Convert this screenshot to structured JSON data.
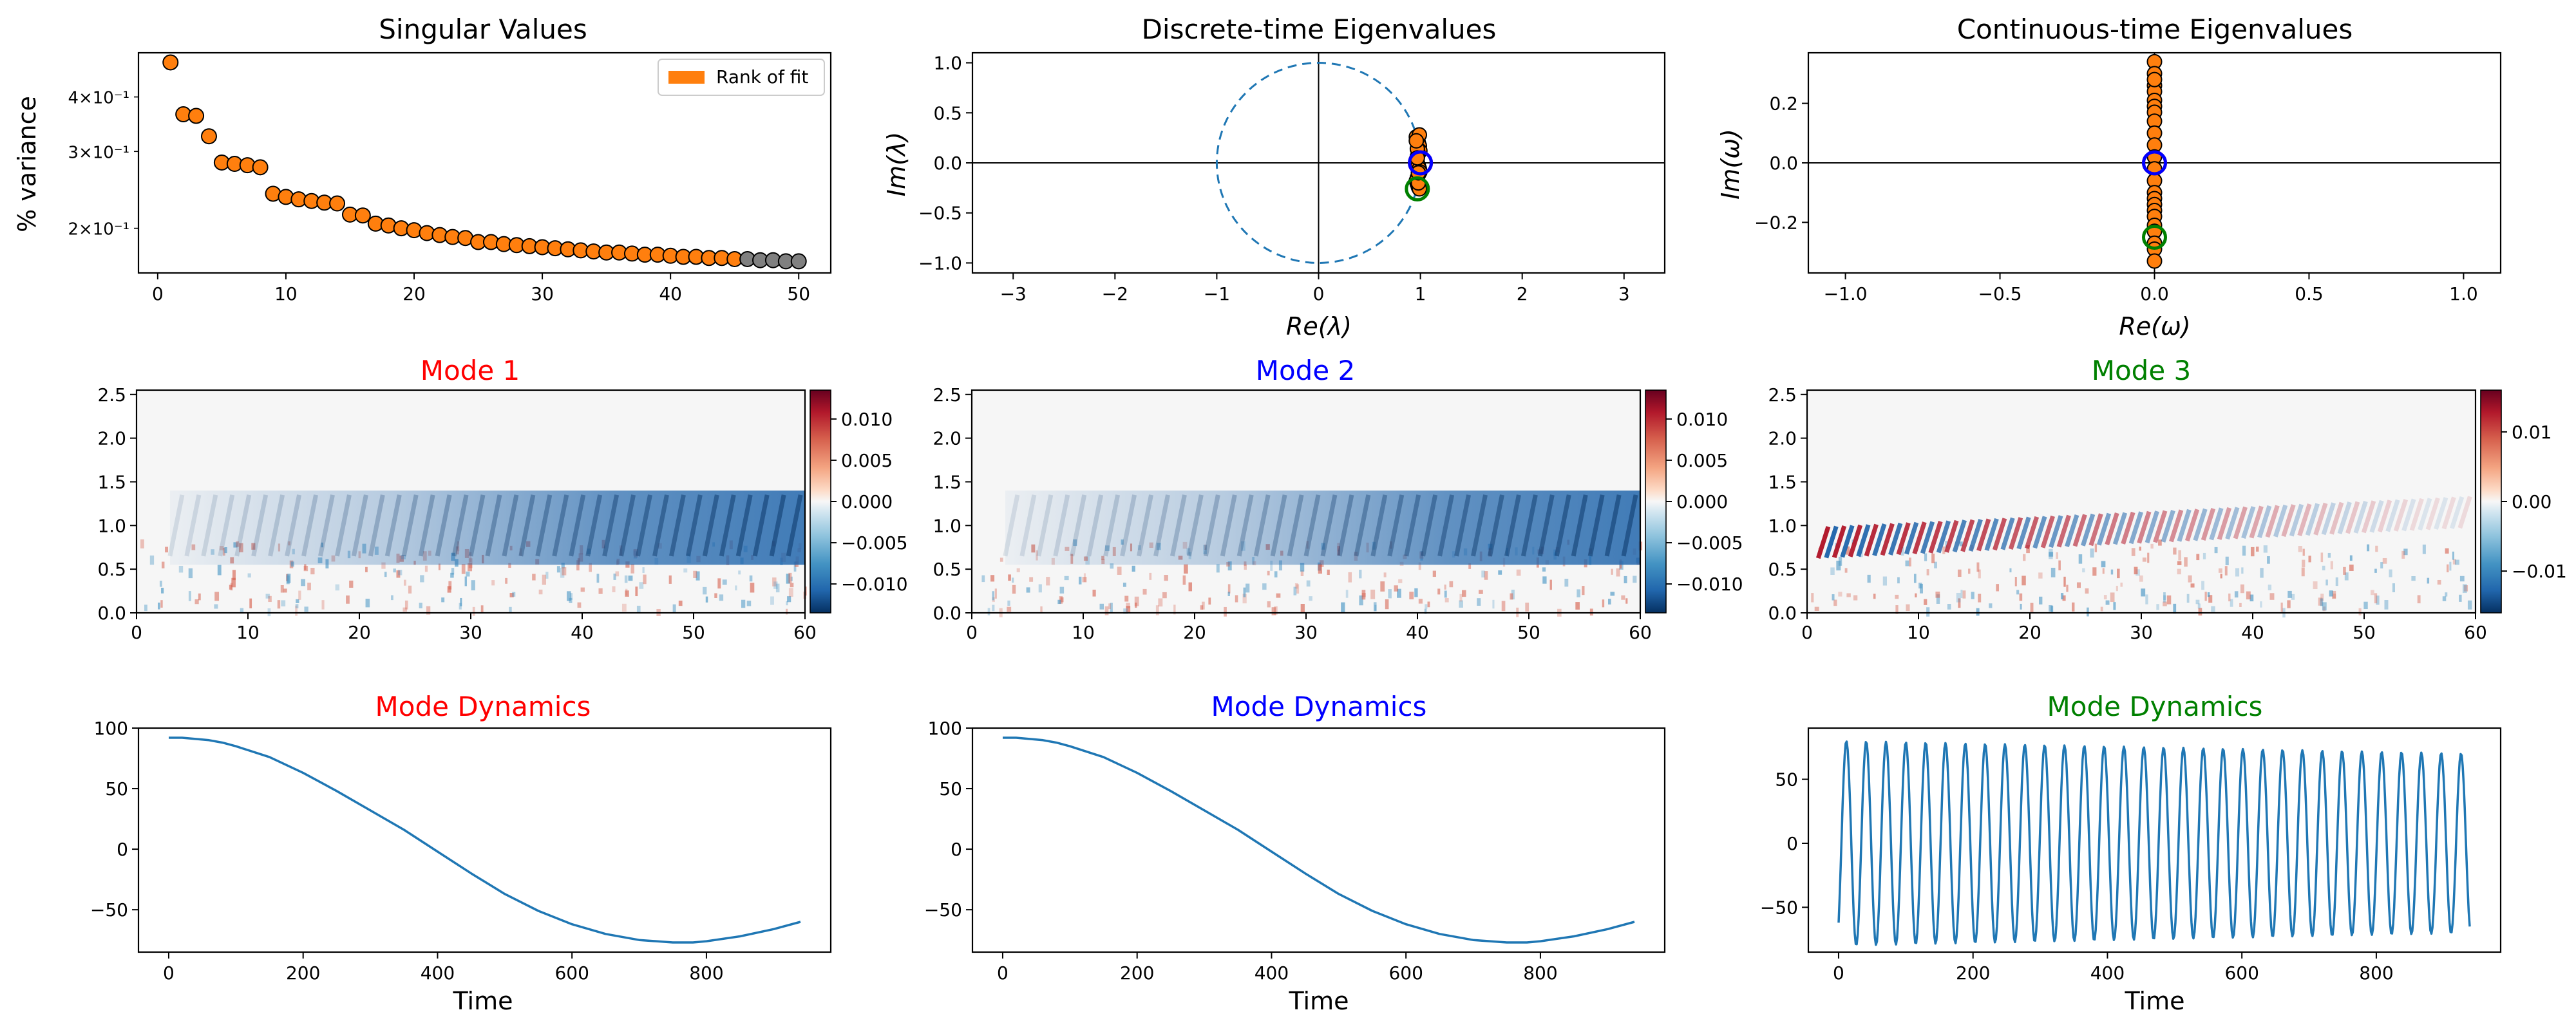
{
  "figure": {
    "colors": {
      "orange": "#ff7f0e",
      "gray": "#808080",
      "blue_line": "#1f77b4",
      "mode1": "#ff0000",
      "mode2": "#0000ff",
      "mode3": "#008000"
    }
  },
  "chart_data": [
    {
      "id": "singular_values",
      "type": "scatter",
      "title": "Singular Values",
      "xlabel": "",
      "ylabel": "% variance",
      "yscale": "log",
      "xlim": [
        -1.5,
        52.5
      ],
      "ylim": [
        0.158,
        0.505
      ],
      "xticks": [
        0,
        10,
        20,
        30,
        40,
        50
      ],
      "yticks": [
        {
          "value": 0.4,
          "label": "4×10⁻¹"
        },
        {
          "value": 0.3,
          "label": "3×10⁻¹"
        },
        {
          "value": 0.2,
          "label": "2×10⁻¹"
        }
      ],
      "legend": {
        "label": "Rank of fit",
        "placement": "top-right"
      },
      "rank_of_fit": 45,
      "x": [
        1,
        2,
        3,
        4,
        5,
        6,
        7,
        8,
        9,
        10,
        11,
        12,
        13,
        14,
        15,
        16,
        17,
        18,
        19,
        20,
        21,
        22,
        23,
        24,
        25,
        26,
        27,
        28,
        29,
        30,
        31,
        32,
        33,
        34,
        35,
        36,
        37,
        38,
        39,
        40,
        41,
        42,
        43,
        44,
        45,
        46,
        47,
        48,
        49,
        50
      ],
      "values": [
        0.48,
        0.365,
        0.362,
        0.325,
        0.283,
        0.281,
        0.279,
        0.276,
        0.24,
        0.236,
        0.233,
        0.231,
        0.229,
        0.228,
        0.215,
        0.214,
        0.205,
        0.203,
        0.2,
        0.198,
        0.195,
        0.193,
        0.191,
        0.19,
        0.186,
        0.186,
        0.184,
        0.183,
        0.182,
        0.181,
        0.18,
        0.179,
        0.178,
        0.177,
        0.176,
        0.176,
        0.175,
        0.174,
        0.174,
        0.173,
        0.172,
        0.172,
        0.171,
        0.171,
        0.17,
        0.17,
        0.169,
        0.169,
        0.168,
        0.168
      ]
    },
    {
      "id": "discrete_eigs",
      "type": "scatter",
      "title": "Discrete-time Eigenvalues",
      "xlabel": "Re(λ)",
      "ylabel": "Im(λ)",
      "xlim": [
        -3.4,
        3.4
      ],
      "ylim": [
        -1.1,
        1.1
      ],
      "xticks": [
        -3,
        -2,
        -1,
        0,
        1,
        2,
        3
      ],
      "yticks": [
        1.0,
        0.5,
        0.0,
        -0.5,
        -1.0
      ],
      "unit_circle": true,
      "x": [
        0.96,
        0.97,
        0.98,
        0.99,
        0.995,
        0.98,
        0.97,
        0.96,
        0.97,
        0.98,
        0.99,
        0.995,
        0.98,
        0.97,
        0.96,
        0.97,
        0.98,
        0.99,
        0.97,
        0.98,
        0.99,
        0.97,
        0.96,
        0.98
      ],
      "y": [
        0.26,
        0.23,
        0.2,
        0.17,
        0.12,
        0.09,
        0.06,
        0.03,
        0.0,
        -0.03,
        -0.06,
        -0.09,
        -0.12,
        -0.15,
        -0.18,
        -0.21,
        -0.24,
        -0.26,
        0.14,
        -0.2,
        0.28,
        0.05,
        0.22,
        -0.1
      ],
      "highlight": [
        {
          "x": 1.0,
          "y": 0.0,
          "mode": 1
        },
        {
          "x": 1.0,
          "y": 0.0,
          "mode": 2
        },
        {
          "x": 0.97,
          "y": -0.26,
          "mode": 3
        }
      ]
    },
    {
      "id": "continuous_eigs",
      "type": "scatter",
      "title": "Continuous-time Eigenvalues",
      "xlabel": "Re(ω)",
      "ylabel": "Im(ω)",
      "xlim": [
        -1.12,
        1.12
      ],
      "ylim": [
        -0.37,
        0.37
      ],
      "xticks": [
        -1.0,
        -0.5,
        0.0,
        0.5,
        1.0
      ],
      "yticks": [
        0.2,
        0.0,
        -0.2
      ],
      "x": [
        0,
        0,
        0,
        0,
        0,
        0,
        0,
        0,
        0,
        0,
        0,
        0,
        0,
        0,
        0,
        0,
        0,
        0,
        0,
        0,
        0,
        0,
        0,
        0
      ],
      "y": [
        0.34,
        0.3,
        0.26,
        0.24,
        0.21,
        0.19,
        0.17,
        0.14,
        0.1,
        0.06,
        0.02,
        -0.02,
        -0.06,
        -0.1,
        -0.12,
        -0.14,
        -0.16,
        -0.18,
        -0.21,
        -0.23,
        -0.27,
        -0.29,
        -0.33,
        0.28
      ],
      "highlight": [
        {
          "x": 0.0,
          "y": 0.0,
          "mode": 1
        },
        {
          "x": 0.0,
          "y": 0.0,
          "mode": 2
        },
        {
          "x": 0.0,
          "y": -0.25,
          "mode": 3
        }
      ]
    },
    {
      "id": "mode1_map",
      "type": "heatmap",
      "title": "Mode 1",
      "xlim": [
        0,
        60
      ],
      "ylim": [
        0,
        2.55
      ],
      "xticks": [
        0,
        10,
        20,
        30,
        40,
        50,
        60
      ],
      "yticks": [
        0.0,
        0.5,
        1.0,
        1.5,
        2.0,
        2.5
      ],
      "colorbar": {
        "ticks": [
          0.01,
          0.005,
          0.0,
          -0.005,
          -0.01
        ],
        "labels": [
          "0.010",
          "0.005",
          "0.000",
          "−0.005",
          "−0.010"
        ],
        "range": [
          -0.0135,
          0.0135
        ],
        "colormap": "RdBu_r"
      },
      "pattern": "blue band near y≈1 growing with x, weak red noise near y≈0"
    },
    {
      "id": "mode2_map",
      "type": "heatmap",
      "title": "Mode 2",
      "xlim": [
        0,
        60
      ],
      "ylim": [
        0,
        2.55
      ],
      "xticks": [
        0,
        10,
        20,
        30,
        40,
        50,
        60
      ],
      "yticks": [
        0.0,
        0.5,
        1.0,
        1.5,
        2.0,
        2.5
      ],
      "colorbar": {
        "ticks": [
          0.01,
          0.005,
          0.0,
          -0.005,
          -0.01
        ],
        "labels": [
          "0.010",
          "0.005",
          "0.000",
          "−0.005",
          "−0.010"
        ],
        "range": [
          -0.0135,
          0.0135
        ],
        "colormap": "RdBu_r"
      },
      "pattern": "blue band near y≈1 growing with x, weak red noise near y≈0"
    },
    {
      "id": "mode3_map",
      "type": "heatmap",
      "title": "Mode 3",
      "xlim": [
        0,
        60
      ],
      "ylim": [
        0,
        2.55
      ],
      "xticks": [
        0,
        10,
        20,
        30,
        40,
        50,
        60
      ],
      "yticks": [
        0.0,
        0.5,
        1.0,
        1.5,
        2.0,
        2.5
      ],
      "colorbar": {
        "ticks": [
          0.01,
          0.0,
          -0.01
        ],
        "labels": [
          "0.01",
          "0.00",
          "−0.01"
        ],
        "range": [
          -0.016,
          0.016
        ],
        "colormap": "RdBu_r"
      },
      "pattern": "alternating red/blue diagonal stripes near y≈0.8, fading with x"
    },
    {
      "id": "mode1_dyn",
      "type": "line",
      "title": "Mode Dynamics",
      "xlabel": "Time",
      "xlim": [
        -45,
        985
      ],
      "ylim": [
        -85,
        100
      ],
      "xticks": [
        0,
        200,
        400,
        600,
        800
      ],
      "yticks": [
        100,
        50,
        0,
        -50
      ],
      "x": [
        0,
        20,
        40,
        60,
        80,
        100,
        150,
        200,
        250,
        300,
        350,
        400,
        450,
        500,
        550,
        600,
        650,
        700,
        750,
        780,
        800,
        850,
        900,
        940
      ],
      "values": [
        92,
        92,
        91,
        90,
        88,
        85,
        76,
        63,
        48,
        32,
        16,
        -2,
        -20,
        -37,
        -51,
        -62,
        -70,
        -75,
        -77,
        -77,
        -76,
        -72,
        -66,
        -60
      ]
    },
    {
      "id": "mode2_dyn",
      "type": "line",
      "title": "Mode Dynamics",
      "xlabel": "Time",
      "xlim": [
        -45,
        985
      ],
      "ylim": [
        -85,
        100
      ],
      "xticks": [
        0,
        200,
        400,
        600,
        800
      ],
      "yticks": [
        100,
        50,
        0,
        -50
      ],
      "x": [
        0,
        20,
        40,
        60,
        80,
        100,
        150,
        200,
        250,
        300,
        350,
        400,
        450,
        500,
        550,
        600,
        650,
        700,
        750,
        780,
        800,
        850,
        900,
        940
      ],
      "values": [
        92,
        92,
        91,
        90,
        88,
        85,
        76,
        63,
        48,
        32,
        16,
        -2,
        -20,
        -37,
        -51,
        -62,
        -70,
        -75,
        -77,
        -77,
        -76,
        -72,
        -66,
        -60
      ]
    },
    {
      "id": "mode3_dyn",
      "type": "line",
      "title": "Mode Dynamics",
      "xlabel": "Time",
      "xlim": [
        -45,
        985
      ],
      "ylim": [
        -85,
        90
      ],
      "xticks": [
        0,
        200,
        400,
        600,
        800
      ],
      "yticks": [
        50,
        0,
        -50
      ],
      "oscillation": {
        "period": 29.5,
        "amp_start": 80,
        "amp_end": 70,
        "t_end": 940,
        "start_value": -62
      }
    }
  ]
}
